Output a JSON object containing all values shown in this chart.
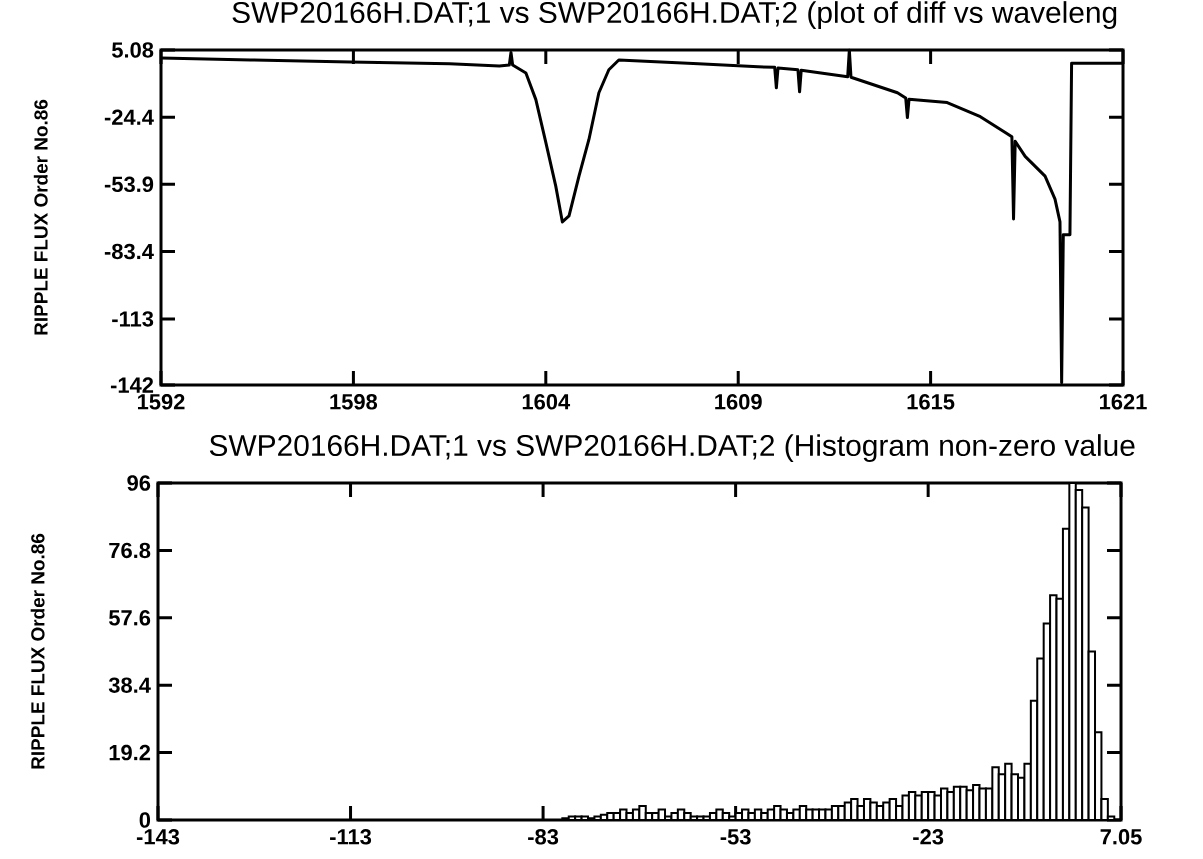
{
  "chart_data": [
    {
      "type": "line",
      "title": "SWP20166H.DAT;1 vs SWP20166H.DAT;2 (plot of diff vs waveleng",
      "ylabel": "RIPPLE FLUX Order No.86",
      "color": "#000000",
      "line_style": "solid",
      "x": [
        1592.0,
        1594.7,
        1597.7,
        1600.7,
        1602.2,
        1602.5,
        1602.55,
        1602.6,
        1603.0,
        1603.3,
        1603.6,
        1603.9,
        1604.1,
        1604.3,
        1604.6,
        1604.9,
        1605.2,
        1605.5,
        1605.8,
        1608.2,
        1610.0,
        1610.5,
        1610.55,
        1610.6,
        1611.2,
        1611.25,
        1611.3,
        1612.7,
        1612.75,
        1612.8,
        1614.2,
        1614.45,
        1614.5,
        1614.55,
        1615.7,
        1616.7,
        1617.45,
        1617.65,
        1617.7,
        1617.75,
        1618.05,
        1618.65,
        1618.95,
        1619.1,
        1619.15,
        1619.2,
        1619.4,
        1619.45,
        1621.0
      ],
      "values": [
        1.6,
        0.7,
        -0.2,
        -1.0,
        -1.9,
        -1.5,
        4.0,
        -1.5,
        -5.0,
        -16.7,
        -35.5,
        -54.7,
        -70.4,
        -67.8,
        -50.3,
        -34.2,
        -13.7,
        -3.6,
        0.7,
        -1.0,
        -2.3,
        -2.5,
        -11.5,
        -2.8,
        -3.6,
        -13.3,
        -3.8,
        -6.7,
        5.0,
        -6.9,
        -13.7,
        -16.0,
        -24.6,
        -16.5,
        -18.0,
        -24.2,
        -31.1,
        -33.0,
        -69.1,
        -35.0,
        -41.6,
        -50.3,
        -60.4,
        -70.4,
        -141.0,
        -76.0,
        -76.0,
        -0.7,
        -0.7
      ],
      "xlim": [
        1592,
        1621
      ],
      "ylim": [
        -142,
        5.08
      ],
      "xticks": [
        1592,
        {
          "value": 1597.8,
          "label": "1598"
        },
        {
          "value": 1603.6,
          "label": "1604"
        },
        {
          "value": 1609.4,
          "label": "1609"
        },
        {
          "value": 1615.2,
          "label": "1615"
        },
        1621
      ],
      "yticks": [
        -142,
        -113,
        -83.4,
        -53.9,
        -24.4,
        5.08
      ]
    },
    {
      "type": "histogram",
      "title": "SWP20166H.DAT;1 vs SWP20166H.DAT;2 (Histogram non-zero value",
      "ylabel": "RIPPLE FLUX Order No.86",
      "color": "#000000",
      "bins": [
        -80,
        -79,
        -78,
        -77,
        -76,
        -75,
        -74,
        -73,
        -72,
        -71,
        -70,
        -69,
        -68,
        -67,
        -66,
        -65,
        -64,
        -63,
        -62,
        -61,
        -60,
        -59,
        -58,
        -57,
        -56,
        -55,
        -54,
        -53,
        -52,
        -51,
        -50,
        -49,
        -48,
        -47,
        -46,
        -45,
        -44,
        -43,
        -42,
        -41,
        -40,
        -39,
        -38,
        -37,
        -36,
        -35,
        -34,
        -33,
        -32,
        -31,
        -30,
        -29,
        -28,
        -27,
        -26,
        -25,
        -24,
        -23,
        -22,
        -21,
        -20,
        -19,
        -18,
        -17,
        -16,
        -15,
        -14,
        -13,
        -12,
        -11,
        -10,
        -9,
        -8,
        -7,
        -6,
        -5,
        -4,
        -3,
        -2,
        -1,
        0,
        1,
        2,
        3,
        4,
        5,
        6
      ],
      "values": [
        0.5,
        1,
        1,
        1,
        0.5,
        1,
        1.5,
        2,
        2,
        3,
        2,
        3,
        4,
        2,
        2,
        3,
        1,
        2,
        3,
        2,
        1,
        1,
        1,
        2,
        3,
        2,
        1,
        2,
        3,
        2,
        3,
        2,
        3,
        4,
        3,
        2,
        3,
        4,
        3,
        3,
        3,
        3,
        4,
        4,
        5,
        6,
        4,
        6,
        5,
        4,
        5,
        6,
        4,
        7,
        8,
        7,
        8,
        8,
        7,
        9,
        8,
        9.5,
        9.5,
        8.5,
        10,
        9,
        9,
        15,
        13,
        16,
        13,
        12,
        16,
        34,
        46,
        56,
        64,
        63,
        83,
        96,
        94,
        89,
        48,
        25,
        6,
        1
      ],
      "xlim": [
        -143,
        7.05
      ],
      "ylim": [
        0,
        96
      ],
      "xticks": [
        -143,
        -113,
        -83,
        -53,
        -23,
        7.05
      ],
      "yticks": [
        0,
        19.2,
        38.4,
        57.6,
        76.8,
        96
      ]
    }
  ]
}
